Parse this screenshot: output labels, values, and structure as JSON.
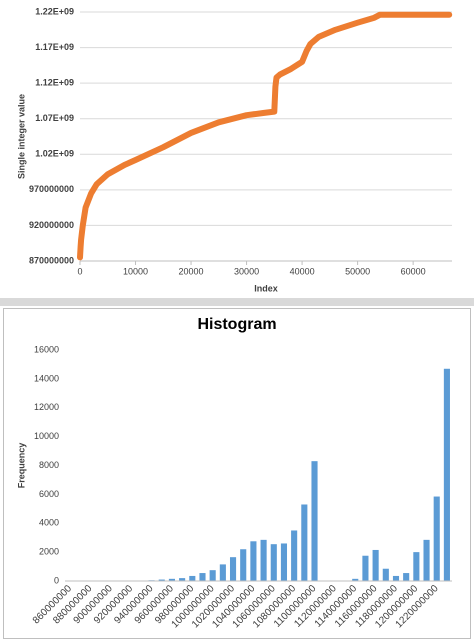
{
  "chart_data": [
    {
      "type": "scatter",
      "x_label": "Index",
      "y_label": "Single integer value",
      "color": "#ed7d31",
      "grid": true,
      "x": [
        0,
        100,
        200,
        500,
        1000,
        2000,
        3000,
        5000,
        8000,
        10000,
        15000,
        20000,
        25000,
        30000,
        33000,
        35000,
        35200,
        35400,
        36000,
        38000,
        40000,
        40800,
        41500,
        43000,
        46000,
        50000,
        53000,
        54000,
        60000,
        66500
      ],
      "values": [
        875000000,
        890000000,
        900000000,
        920000000,
        945000000,
        965000000,
        978000000,
        992000000,
        1005000000,
        1012000000,
        1030000000,
        1050000000,
        1065000000,
        1075000000,
        1078000000,
        1080000000,
        1115000000,
        1128000000,
        1132000000,
        1140000000,
        1150000000,
        1165000000,
        1175000000,
        1185000000,
        1195000000,
        1205000000,
        1212000000,
        1216000000,
        1216000000,
        1216000000
      ],
      "xlim": [
        0,
        67000
      ],
      "xticks": [
        0,
        10000,
        20000,
        30000,
        40000,
        50000,
        60000
      ],
      "ylim": [
        870000000,
        1220000000
      ],
      "yticks": [
        870000000,
        920000000,
        970000000,
        {
          "value": 1020000000,
          "label": "1.02E+09"
        },
        {
          "value": 1070000000,
          "label": "1.07E+09"
        },
        {
          "value": 1120000000,
          "label": "1.12E+09"
        },
        {
          "value": 1170000000,
          "label": "1.17E+09"
        },
        {
          "value": 1220000000,
          "label": "1.22E+09"
        }
      ]
    },
    {
      "type": "bar",
      "title": "Histogram",
      "y_label": "Frequency",
      "color": "#5b9bd5",
      "grid": false,
      "categories": [
        "860000000",
        null,
        "880000000",
        null,
        "900000000",
        null,
        "920000000",
        null,
        "940000000",
        null,
        "960000000",
        null,
        "980000000",
        null,
        "1000000000",
        null,
        "1020000000",
        null,
        "1040000000",
        null,
        "1060000000",
        null,
        "1080000000",
        null,
        "1100000000",
        null,
        "1120000000",
        null,
        "1140000000",
        null,
        "1160000000",
        null,
        "1180000000",
        null,
        "1200000000",
        null,
        "1220000000",
        null
      ],
      "values": [
        0,
        0,
        0,
        0,
        0,
        0,
        0,
        0,
        50,
        100,
        150,
        200,
        350,
        550,
        750,
        1150,
        1650,
        2200,
        2750,
        2850,
        2550,
        2600,
        3500,
        5300,
        8300,
        0,
        0,
        0,
        150,
        1750,
        2150,
        850,
        350,
        550,
        2000,
        2850,
        5850,
        14700
      ],
      "ylim": [
        0,
        16000
      ],
      "yticks": [
        0,
        2000,
        4000,
        6000,
        8000,
        10000,
        12000,
        14000,
        16000
      ]
    }
  ]
}
